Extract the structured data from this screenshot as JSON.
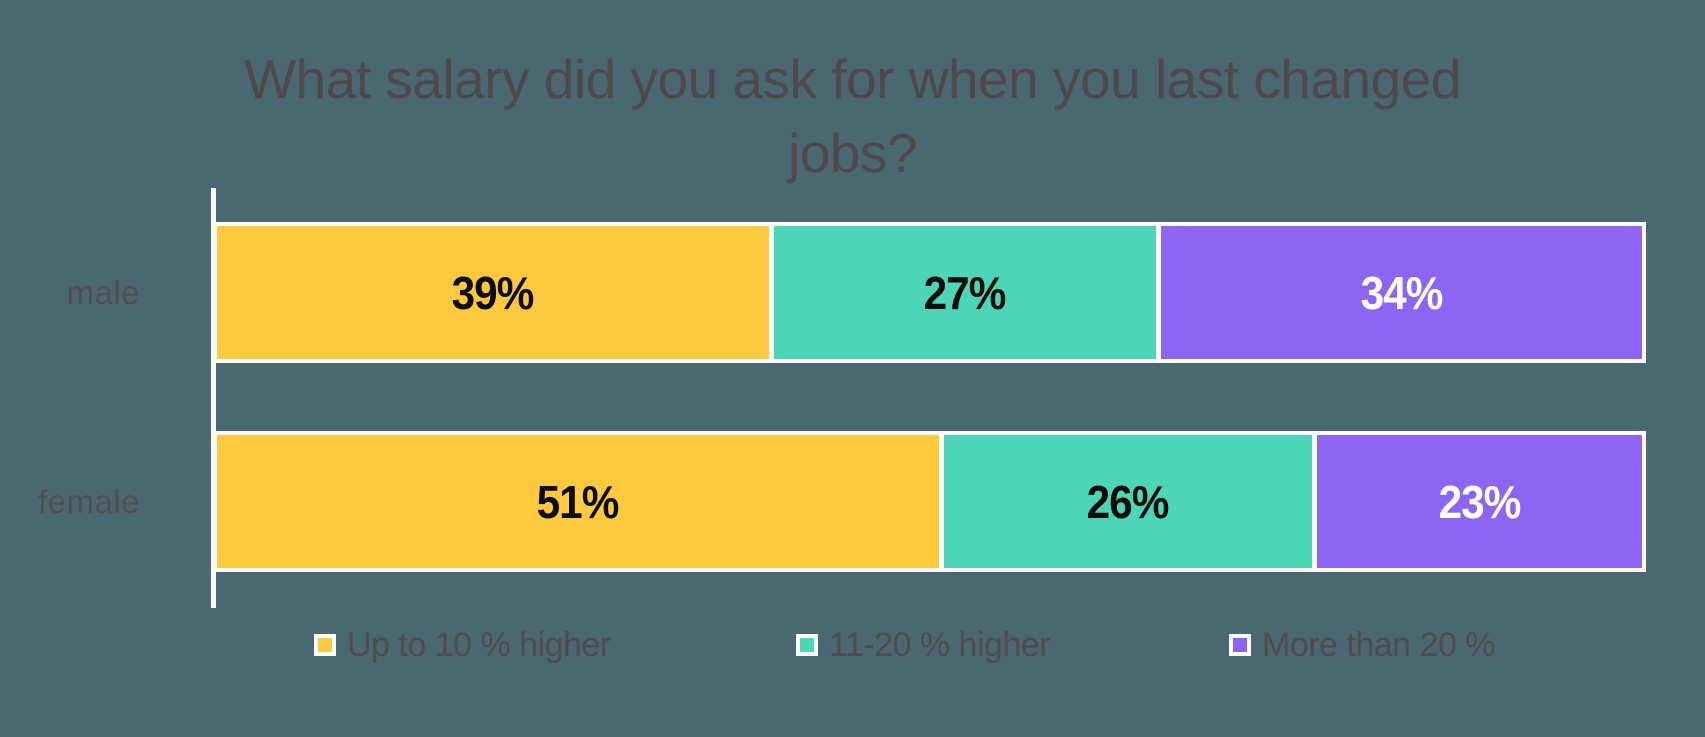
{
  "title": "What salary did you ask for when you last changed jobs?",
  "colors": {
    "background": "#4A6872",
    "axis_line": "#FFFFFF",
    "bar_border": "#FFFFFF",
    "title_text": "#4F494B",
    "category_text": "#544E50",
    "legend_text": "#514B4D"
  },
  "chart_data": {
    "type": "bar",
    "orientation": "horizontal",
    "stacked": true,
    "title": "What salary did you ask for when you last changed jobs?",
    "categories": [
      "male",
      "female"
    ],
    "series": [
      {
        "name": "Up to 10 % higher",
        "color": "#FFC93E",
        "label_color": "#0B0B0B",
        "values": [
          39,
          51
        ]
      },
      {
        "name": "11-20 % higher",
        "color": "#4DD5B8",
        "label_color": "#0B0B0B",
        "values": [
          27,
          26
        ]
      },
      {
        "name": "More than 20 %",
        "color": "#8C66F2",
        "label_color": "#FFFFFF",
        "values": [
          34,
          23
        ]
      }
    ],
    "value_suffix": "%",
    "xlim": [
      0,
      100
    ],
    "grid": false,
    "legend_position": "bottom",
    "data_labels": "inside-center"
  }
}
